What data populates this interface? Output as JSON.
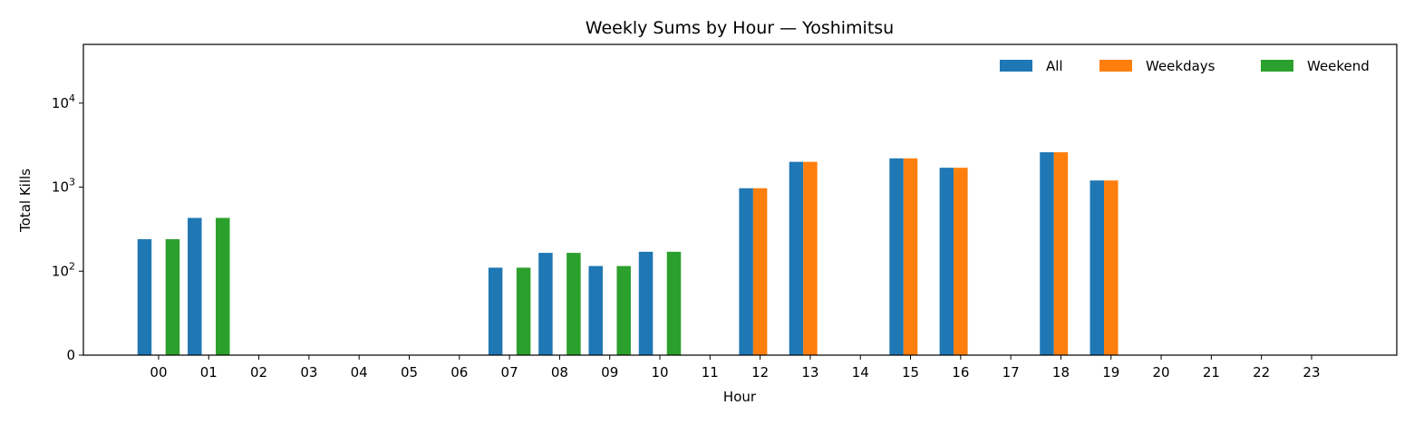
{
  "chart_data": {
    "type": "bar",
    "title": "Weekly Sums by Hour — Yoshimitsu",
    "xlabel": "Hour",
    "ylabel": "Total Kills",
    "y_scale": "symlog",
    "ylim": [
      0,
      50000
    ],
    "y_ticks": [
      {
        "value": 0,
        "label": "0"
      },
      {
        "value": 100,
        "base": "10",
        "exp": "2"
      },
      {
        "value": 1000,
        "base": "10",
        "exp": "3"
      },
      {
        "value": 10000,
        "base": "10",
        "exp": "4"
      }
    ],
    "categories": [
      "00",
      "01",
      "02",
      "03",
      "04",
      "05",
      "06",
      "07",
      "08",
      "09",
      "10",
      "11",
      "12",
      "13",
      "14",
      "15",
      "16",
      "17",
      "18",
      "19",
      "20",
      "21",
      "22",
      "23"
    ],
    "series": [
      {
        "name": "All",
        "color": "#1f77b4",
        "values": [
          240,
          430,
          0,
          0,
          0,
          0,
          0,
          110,
          165,
          115,
          170,
          0,
          970,
          2000,
          0,
          2200,
          1700,
          0,
          2600,
          1200,
          0,
          0,
          0,
          0
        ]
      },
      {
        "name": "Weekdays",
        "color": "#ff7f0e",
        "values": [
          0,
          0,
          0,
          0,
          0,
          0,
          0,
          0,
          0,
          0,
          0,
          0,
          970,
          2000,
          0,
          2200,
          1700,
          0,
          2600,
          1200,
          0,
          0,
          0,
          0
        ]
      },
      {
        "name": "Weekend",
        "color": "#2ca02c",
        "values": [
          240,
          430,
          0,
          0,
          0,
          0,
          0,
          110,
          165,
          115,
          170,
          0,
          0,
          0,
          0,
          0,
          0,
          0,
          0,
          0,
          0,
          0,
          0,
          0
        ]
      }
    ],
    "legend_position": "top-right",
    "grid": false
  }
}
